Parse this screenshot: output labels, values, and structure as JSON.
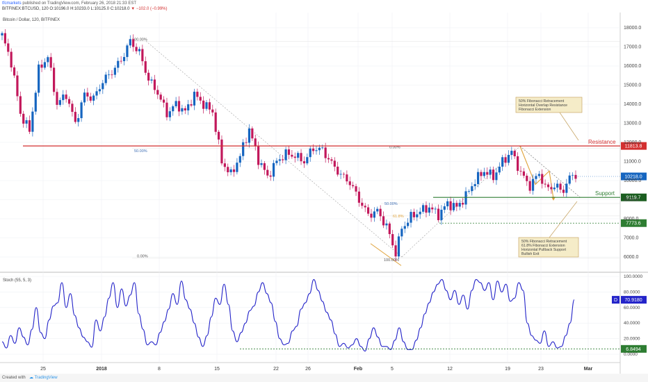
{
  "header": {
    "author": "tfcmarkets",
    "published_text": "published on TradingView.com, February 26, 2018 21:33 EST",
    "symbol_line": "BITFINEX:BTCUSD, 120",
    "open": "O:10196.0",
    "high": "H:10233.0",
    "low": "L:10125.0",
    "close": "C:10218.0",
    "change": "−102.0 (−0.99%)"
  },
  "footer": {
    "created_with": "Created with",
    "brand": "TradingView"
  },
  "legend": {
    "main": "Bitcoin / Dollar, 120, BITFINEX",
    "stoch": "Stoch (55, 5, 3)"
  },
  "colors": {
    "up": "#1565c0",
    "down": "#c2185b",
    "resistance": "#d32f2f",
    "support": "#2e7d32",
    "stoch_line": "#2424c9"
  },
  "chart_data": [
    {
      "type": "candlestick",
      "title": "Bitcoin / Dollar, 120, BITFINEX",
      "y_scale": "linear",
      "ylim": [
        5200,
        18800
      ],
      "y_ticks": [
        "18000.0",
        "17000.0",
        "16000.0",
        "15000.0",
        "14000.0",
        "13000.0",
        "12000.0",
        "11000.0",
        "10000.0",
        "9000.0",
        "8000.0",
        "7000.0",
        "6000.0"
      ],
      "x_ticks": [
        "25",
        "2018",
        "8",
        "15",
        "22",
        "26",
        "Feb",
        "5",
        "12",
        "19",
        "23",
        "Mar"
      ],
      "price_path": [
        [
          0,
          17600
        ],
        [
          3,
          16200
        ],
        [
          6,
          13500
        ],
        [
          9,
          12600
        ],
        [
          12,
          15800
        ],
        [
          15,
          16500
        ],
        [
          18,
          14000
        ],
        [
          21,
          14500
        ],
        [
          24,
          13000
        ],
        [
          27,
          14500
        ],
        [
          30,
          14300
        ],
        [
          33,
          15200
        ],
        [
          36,
          15700
        ],
        [
          39,
          16300
        ],
        [
          42,
          17300
        ],
        [
          45,
          16700
        ],
        [
          48,
          15300
        ],
        [
          51,
          14600
        ],
        [
          54,
          13500
        ],
        [
          57,
          14000
        ],
        [
          60,
          13600
        ],
        [
          63,
          14500
        ],
        [
          66,
          14000
        ],
        [
          69,
          13600
        ],
        [
          72,
          11000
        ],
        [
          75,
          10300
        ],
        [
          78,
          11300
        ],
        [
          81,
          12700
        ],
        [
          84,
          11100
        ],
        [
          87,
          10200
        ],
        [
          90,
          11000
        ],
        [
          93,
          11400
        ],
        [
          96,
          11300
        ],
        [
          99,
          11000
        ],
        [
          102,
          11700
        ],
        [
          105,
          11600
        ],
        [
          108,
          10900
        ],
        [
          111,
          10300
        ],
        [
          114,
          9900
        ],
        [
          117,
          9000
        ],
        [
          120,
          8200
        ],
        [
          123,
          8400
        ],
        [
          126,
          7600
        ],
        [
          129,
          6200
        ],
        [
          131,
          7500
        ],
        [
          134,
          8100
        ],
        [
          137,
          8400
        ],
        [
          140,
          8600
        ],
        [
          143,
          8200
        ],
        [
          146,
          8800
        ],
        [
          149,
          8600
        ],
        [
          152,
          9200
        ],
        [
          155,
          10000
        ],
        [
          158,
          10500
        ],
        [
          161,
          10200
        ],
        [
          164,
          11000
        ],
        [
          167,
          11500
        ],
        [
          170,
          10400
        ],
        [
          173,
          9700
        ],
        [
          176,
          10400
        ],
        [
          178,
          9600
        ],
        [
          181,
          9700
        ],
        [
          184,
          9500
        ],
        [
          187,
          10400
        ],
        [
          188,
          10218
        ]
      ],
      "resistance": {
        "value": 11813.8,
        "label": "Resistance",
        "tag": "11813.8"
      },
      "support": {
        "value": 9119.7,
        "label": "Support",
        "tag": "9119.7"
      },
      "level_7773": {
        "value": 7773.6,
        "tag": "7773.6"
      },
      "last_price": {
        "value": 10218.0,
        "tag": "10218.0"
      },
      "fib_labels": [
        "100.00%",
        "50.00%",
        "0.00%",
        "0.00%",
        "50.00%",
        "61.8%",
        "100.00%"
      ],
      "annotations": [
        "50% Fibonacci Retracement\nHorizontal Overlap Resistance\nFibonacci Extension",
        "50% Fibonacci Retracement\n61.8% Fibonacci Extension\nHorizontal Pullback Support\nBullish Exit"
      ]
    },
    {
      "type": "line",
      "title": "Stoch (55, 5, 3)",
      "ylim": [
        0,
        100
      ],
      "y_ticks": [
        "100.0000",
        "80.0000",
        "60.0000",
        "40.0000",
        "20.0000",
        "0.0000"
      ],
      "last_value": {
        "label": "D",
        "tag": "70.9180"
      },
      "min_marker": {
        "value": 6.8494,
        "tag": "6.8494"
      },
      "series": [
        {
          "values": [
            16,
            8,
            24,
            14,
            34,
            22,
            12,
            32,
            60,
            28,
            20,
            44,
            62,
            66,
            92,
            60,
            78,
            50,
            34,
            22,
            16,
            9,
            44,
            30,
            48,
            72,
            92,
            60,
            84,
            62,
            76,
            92,
            52,
            32,
            12,
            16,
            12,
            28,
            42,
            58,
            78,
            64,
            94,
            70,
            58,
            40,
            22,
            10,
            24,
            48,
            72,
            64,
            90,
            64,
            30,
            16,
            28,
            40,
            56,
            62,
            80,
            92,
            78,
            66,
            42,
            20,
            12,
            14,
            30,
            36,
            58,
            66,
            78,
            96,
            82,
            68,
            54,
            44,
            26,
            10,
            14,
            8,
            12,
            20,
            10,
            4,
            20,
            34,
            22,
            10,
            10,
            6,
            18,
            34,
            16,
            6,
            6,
            18,
            34,
            52,
            66,
            80,
            90,
            96,
            82,
            70,
            82,
            64,
            76,
            58,
            82,
            96,
            92,
            82,
            92,
            70,
            94,
            80,
            90,
            68,
            72,
            92,
            82,
            40,
            24,
            18,
            14,
            30,
            10,
            16,
            8,
            10,
            24,
            40,
            70
          ]
        }
      ]
    }
  ]
}
